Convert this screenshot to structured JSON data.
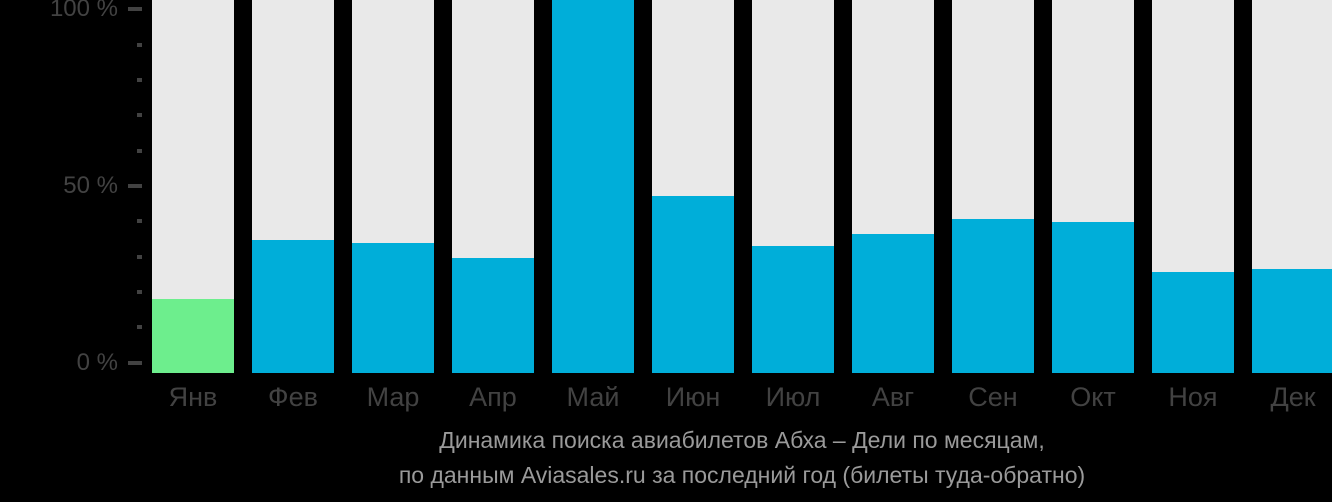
{
  "chart_data": {
    "type": "bar",
    "title": "Динамика поиска авиабилетов Абха – Дели по месяцам,",
    "subtitle": "по данным Aviasales.ru за последний год (билеты туда-обратно)",
    "categories": [
      "Янв",
      "Фев",
      "Мар",
      "Апр",
      "Май",
      "Июн",
      "Июл",
      "Авг",
      "Сен",
      "Окт",
      "Ноя",
      "Дек"
    ],
    "values": [
      18,
      34.7,
      33.8,
      29.7,
      100,
      47.1,
      33,
      36.4,
      40.6,
      39.8,
      25.6,
      26.5
    ],
    "unit": "%",
    "xlabel": "",
    "ylabel": "",
    "ylim": [
      0,
      100
    ],
    "ytick_minor_step": 10,
    "ytick_labels": [
      "0 %",
      "50 %",
      "100 %"
    ],
    "ytick_label_values": [
      0,
      50,
      100
    ],
    "highlight_index": 0,
    "grid": false,
    "legend_position": "none",
    "colors": {
      "background": "#000000",
      "bar": "#00AED9",
      "highlight_bar": "#6DEE8D",
      "track": "#E9E9E9",
      "axis_text": "#424242",
      "caption_text": "#9A9A9A"
    }
  }
}
